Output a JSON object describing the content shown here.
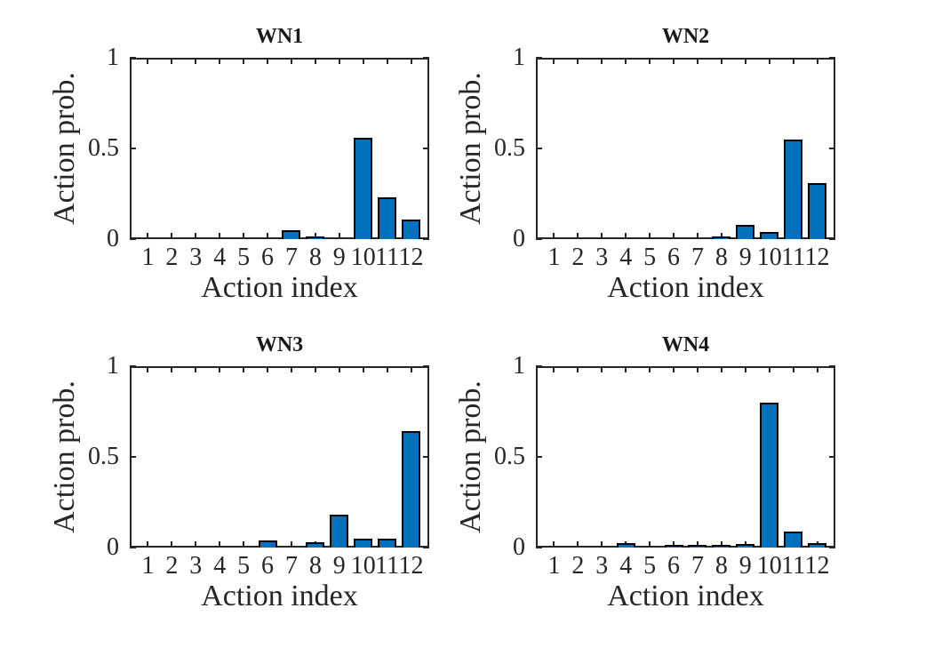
{
  "figure": {
    "background": "#ffffff",
    "text_color": "#262626",
    "axis_color": "#262626"
  },
  "chart_data": [
    {
      "type": "bar",
      "title": "WN1",
      "xlabel": "Action index",
      "ylabel": "Action prob.",
      "categories": [
        "1",
        "2",
        "3",
        "4",
        "5",
        "6",
        "7",
        "8",
        "9",
        "10",
        "11",
        "12"
      ],
      "values": [
        0,
        0,
        0,
        0,
        0,
        0,
        0.05,
        0.015,
        0,
        0.56,
        0.23,
        0.11
      ],
      "ylim": [
        0,
        1
      ],
      "yticks": [
        0,
        0.5,
        1
      ],
      "ytick_labels": [
        "0",
        "0.5",
        "1"
      ],
      "xlim": [
        0.24,
        12.76
      ],
      "bar_color": "#0072BD",
      "bar_edge_color": "#000000",
      "grid": false
    },
    {
      "type": "bar",
      "title": "WN2",
      "xlabel": "Action index",
      "ylabel": "Action prob.",
      "categories": [
        "1",
        "2",
        "3",
        "4",
        "5",
        "6",
        "7",
        "8",
        "9",
        "10",
        "11",
        "12"
      ],
      "values": [
        0,
        0,
        0,
        0,
        0,
        0,
        0,
        0.005,
        0.08,
        0.04,
        0.55,
        0.31
      ],
      "ylim": [
        0,
        1
      ],
      "yticks": [
        0,
        0.5,
        1
      ],
      "ytick_labels": [
        "0",
        "0.5",
        "1"
      ],
      "xlim": [
        0.24,
        12.76
      ],
      "bar_color": "#0072BD",
      "bar_edge_color": "#000000",
      "grid": false
    },
    {
      "type": "bar",
      "title": "WN3",
      "xlabel": "Action index",
      "ylabel": "Action prob.",
      "categories": [
        "1",
        "2",
        "3",
        "4",
        "5",
        "6",
        "7",
        "8",
        "9",
        "10",
        "11",
        "12"
      ],
      "values": [
        0,
        0,
        0,
        0,
        0,
        0.04,
        0,
        0.03,
        0.18,
        0.05,
        0.05,
        0.64
      ],
      "ylim": [
        0,
        1
      ],
      "yticks": [
        0,
        0.5,
        1
      ],
      "ytick_labels": [
        "0",
        "0.5",
        "1"
      ],
      "xlim": [
        0.24,
        12.76
      ],
      "bar_color": "#0072BD",
      "bar_edge_color": "#000000",
      "grid": false
    },
    {
      "type": "bar",
      "title": "WN4",
      "xlabel": "Action index",
      "ylabel": "Action prob.",
      "categories": [
        "1",
        "2",
        "3",
        "4",
        "5",
        "6",
        "7",
        "8",
        "9",
        "10",
        "11",
        "12"
      ],
      "values": [
        0,
        0,
        0,
        0.025,
        0,
        0.012,
        0.005,
        0.005,
        0.02,
        0.8,
        0.09,
        0.025
      ],
      "ylim": [
        0,
        1
      ],
      "yticks": [
        0,
        0.5,
        1
      ],
      "ytick_labels": [
        "0",
        "0.5",
        "1"
      ],
      "xlim": [
        0.24,
        12.76
      ],
      "bar_color": "#0072BD",
      "bar_edge_color": "#000000",
      "grid": false
    }
  ]
}
